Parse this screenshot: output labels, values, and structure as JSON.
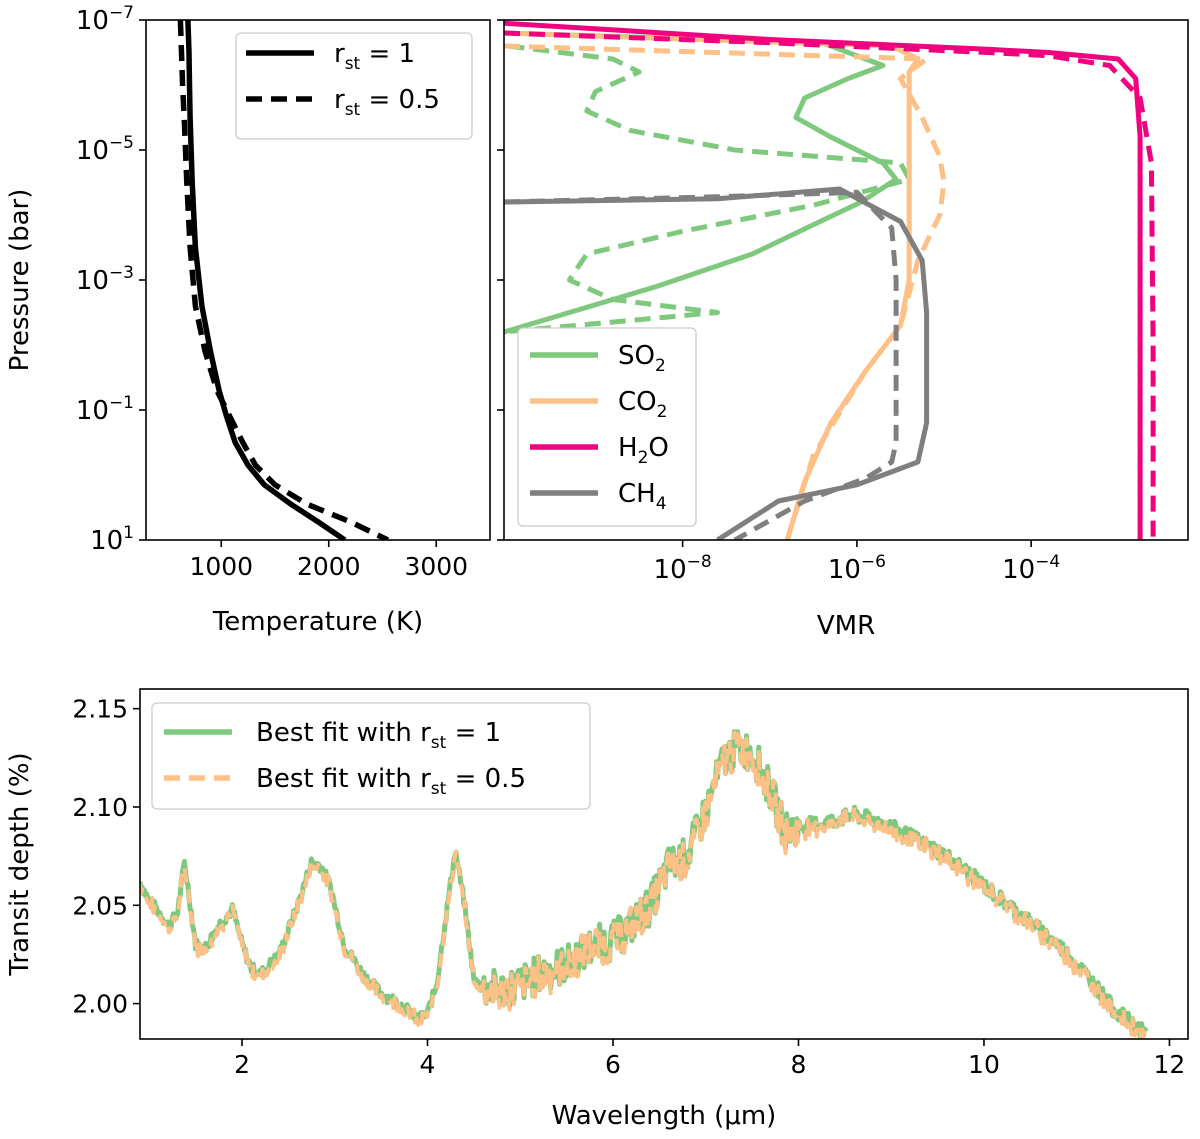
{
  "colors": {
    "so2": "#7fc97f",
    "co2": "#fdc086",
    "h2o": "#f0027f",
    "ch4": "#7f7f7f",
    "temp": "#000000"
  },
  "chart_data": [
    {
      "id": "temperature",
      "type": "line",
      "xlabel": "Temperature (K)",
      "ylabel": "Pressure (bar)",
      "xlim": [
        300,
        3500
      ],
      "xticks": [
        1000,
        2000,
        3000
      ],
      "ylim_log10": [
        -7,
        1
      ],
      "yscale": "log",
      "yaxis_inverted": true,
      "yticks": [
        {
          "base": "10",
          "exp": "−7",
          "v": -7
        },
        {
          "base": "10",
          "exp": "−5",
          "v": -5
        },
        {
          "base": "10",
          "exp": "−3",
          "v": -3
        },
        {
          "base": "10",
          "exp": "−1",
          "v": -1
        },
        {
          "base": "10",
          "exp": "1",
          "v": 1
        }
      ],
      "legend": {
        "placement": "top-right",
        "entries": [
          {
            "label_main": "r",
            "label_sub": "st",
            "label_rest": " = 1",
            "style": "solid"
          },
          {
            "label_main": "r",
            "label_sub": "st",
            "label_rest": " = 0.5",
            "style": "dashed"
          }
        ]
      },
      "series": [
        {
          "name": "r_st = 1",
          "style": "solid",
          "color_key": "temp",
          "x": [
            690,
            700,
            705,
            710,
            730,
            760,
            820,
            900,
            980,
            1050,
            1130,
            1250,
            1400,
            1650,
            1900,
            2150
          ],
          "y_log10": [
            -7,
            -6.5,
            -6,
            -5.5,
            -4.5,
            -3.5,
            -2.6,
            -1.9,
            -1.3,
            -0.9,
            -0.5,
            -0.15,
            0.15,
            0.45,
            0.72,
            1
          ]
        },
        {
          "name": "r_st = 0.5",
          "style": "dashed",
          "color_key": "temp",
          "x": [
            620,
            630,
            640,
            655,
            680,
            710,
            760,
            850,
            960,
            1080,
            1200,
            1320,
            1500,
            1800,
            2200,
            2550
          ],
          "y_log10": [
            -7,
            -6.5,
            -6,
            -5.5,
            -4.5,
            -3.5,
            -2.6,
            -1.9,
            -1.3,
            -0.9,
            -0.5,
            -0.15,
            0.15,
            0.45,
            0.72,
            1
          ]
        }
      ]
    },
    {
      "id": "vmr",
      "type": "line",
      "xlabel": "VMR",
      "xscale": "log",
      "xlim_log10": [
        -10.05,
        -2.2
      ],
      "xticks": [
        {
          "base": "10",
          "exp": "−8",
          "v": -8
        },
        {
          "base": "10",
          "exp": "−6",
          "v": -6
        },
        {
          "base": "10",
          "exp": "−4",
          "v": -4
        }
      ],
      "ylim_log10": [
        -7,
        1
      ],
      "yscale": "log",
      "yaxis_inverted": true,
      "legend": {
        "placement": "bottom-left",
        "entries": [
          {
            "label_main": "SO",
            "label_sub": "2",
            "label_rest": "",
            "color_key": "so2"
          },
          {
            "label_main": "CO",
            "label_sub": "2",
            "label_rest": "",
            "color_key": "co2"
          },
          {
            "label_main": "H",
            "label_sub": "2",
            "label_rest": "O",
            "color_key": "h2o"
          },
          {
            "label_main": "CH",
            "label_sub": "4",
            "label_rest": "",
            "color_key": "ch4"
          }
        ]
      },
      "series": [
        {
          "name": "SO2",
          "style": "solid",
          "color_key": "so2",
          "x_log10": [
            -10.05,
            -6.4,
            -5.7,
            -6.1,
            -6.6,
            -6.7,
            -6.3,
            -5.7,
            -5.55,
            -5.95,
            -6.5,
            -7.2,
            -8.3,
            -9.3,
            -10.05
          ],
          "y_log10": [
            -6.8,
            -6.65,
            -6.3,
            -6.1,
            -5.8,
            -5.5,
            -5.2,
            -4.8,
            -4.55,
            -4.2,
            -3.85,
            -3.4,
            -2.9,
            -2.5,
            -2.2
          ]
        },
        {
          "name": "SO2",
          "style": "dashed",
          "color_key": "so2",
          "x_log10": [
            -10.0,
            -8.8,
            -8.5,
            -9.0,
            -9.1,
            -8.6,
            -7.4,
            -5.5,
            -5.4,
            -6.5,
            -8.0,
            -9.1,
            -9.3,
            -8.8,
            -7.6,
            -10.05
          ],
          "y_log10": [
            -6.6,
            -6.4,
            -6.2,
            -5.9,
            -5.6,
            -5.3,
            -5.0,
            -4.8,
            -4.55,
            -4.15,
            -3.75,
            -3.4,
            -3.0,
            -2.7,
            -2.5,
            -2.2
          ]
        },
        {
          "name": "CO2",
          "style": "solid",
          "color_key": "co2",
          "x_log10": [
            -10.05,
            -5.6,
            -5.3,
            -5.4,
            -5.4,
            -5.4,
            -5.4,
            -5.5,
            -5.9,
            -6.3,
            -6.6,
            -6.8
          ],
          "y_log10": [
            -6.8,
            -6.6,
            -6.4,
            -6.2,
            -5.5,
            -4.0,
            -3.0,
            -2.3,
            -1.6,
            -0.8,
            0.1,
            1.0
          ]
        },
        {
          "name": "CO2",
          "style": "dashed",
          "color_key": "co2",
          "x_log10": [
            -10.05,
            -5.2,
            -5.5,
            -5.25,
            -5.05,
            -5.0,
            -5.05,
            -5.3,
            -5.5,
            -5.9,
            -6.5,
            -6.8
          ],
          "y_log10": [
            -6.6,
            -6.4,
            -6.1,
            -5.5,
            -4.9,
            -4.5,
            -4.0,
            -3.3,
            -2.3,
            -1.6,
            -0.3,
            1.0
          ]
        },
        {
          "name": "H2O",
          "style": "solid",
          "color_key": "h2o",
          "x_log10": [
            -10.05,
            -7.0,
            -4.5,
            -3.8,
            -3.0,
            -2.8,
            -2.75,
            -2.75,
            -2.75
          ],
          "y_log10": [
            -6.95,
            -6.7,
            -6.55,
            -6.5,
            -6.4,
            -6.1,
            -5.2,
            -2.0,
            1.0
          ]
        },
        {
          "name": "H2O",
          "style": "dashed",
          "color_key": "h2o",
          "x_log10": [
            -10.05,
            -7.0,
            -4.5,
            -3.8,
            -3.1,
            -2.75,
            -2.62,
            -2.6,
            -2.6
          ],
          "y_log10": [
            -6.8,
            -6.65,
            -6.5,
            -6.45,
            -6.3,
            -5.8,
            -4.8,
            -2.0,
            1.0
          ]
        },
        {
          "name": "CH4",
          "style": "solid",
          "color_key": "ch4",
          "x_log10": [
            -10.05,
            -7.6,
            -6.2,
            -5.5,
            -5.25,
            -5.2,
            -5.2,
            -5.2,
            -5.3,
            -6.0,
            -6.9,
            -7.6
          ],
          "y_log10": [
            -4.2,
            -4.25,
            -4.4,
            -3.9,
            -3.3,
            -2.5,
            -1.5,
            -0.8,
            -0.2,
            0.15,
            0.4,
            1.0
          ]
        },
        {
          "name": "CH4",
          "style": "dashed",
          "color_key": "ch4",
          "x_log10": [
            -10.05,
            -7.6,
            -6.0,
            -5.6,
            -5.55,
            -5.55,
            -5.55,
            -5.6,
            -5.9,
            -6.6,
            -7.4
          ],
          "y_log10": [
            -4.2,
            -4.28,
            -4.35,
            -3.8,
            -3.0,
            -2.0,
            -0.5,
            -0.2,
            0.05,
            0.4,
            1.0
          ]
        }
      ]
    },
    {
      "id": "spectrum",
      "type": "line",
      "xlabel": "Wavelength (μm)",
      "ylabel": "Transit depth (%)",
      "xlim": [
        0.9,
        12.2
      ],
      "ylim": [
        1.982,
        2.16
      ],
      "xticks": [
        2,
        4,
        6,
        8,
        10,
        12
      ],
      "yticks": [
        2.0,
        2.05,
        2.1,
        2.15
      ],
      "ytick_labels": [
        "2.00",
        "2.05",
        "2.10",
        "2.15"
      ],
      "legend": {
        "placement": "top-left",
        "entries": [
          {
            "label_main": "Best fit with r",
            "label_sub": "st",
            "label_rest": " = 1",
            "color_key": "so2",
            "style": "solid"
          },
          {
            "label_main": "Best fit with r",
            "label_sub": "st",
            "label_rest": " = 0.5",
            "color_key": "co2",
            "style": "dashed"
          }
        ]
      },
      "base_profile": {
        "x": [
          0.9,
          1.0,
          1.1,
          1.2,
          1.3,
          1.38,
          1.5,
          1.6,
          1.75,
          1.9,
          2.0,
          2.1,
          2.2,
          2.4,
          2.6,
          2.75,
          2.85,
          2.95,
          3.1,
          3.3,
          3.5,
          3.7,
          3.9,
          4.0,
          4.1,
          4.2,
          4.3,
          4.4,
          4.5,
          4.6,
          4.8,
          5.0,
          5.2,
          5.5,
          5.8,
          6.0,
          6.2,
          6.4,
          6.6,
          6.8,
          7.0,
          7.2,
          7.35,
          7.5,
          7.7,
          7.85,
          8.0,
          8.3,
          8.6,
          8.9,
          9.2,
          9.6,
          10.0,
          10.4,
          10.8,
          11.1,
          11.4,
          11.75
        ],
        "y": [
          2.062,
          2.052,
          2.047,
          2.04,
          2.045,
          2.072,
          2.03,
          2.028,
          2.04,
          2.048,
          2.03,
          2.018,
          2.015,
          2.025,
          2.05,
          2.072,
          2.07,
          2.06,
          2.03,
          2.015,
          2.005,
          2.0,
          1.992,
          1.995,
          2.01,
          2.045,
          2.078,
          2.05,
          2.012,
          2.008,
          2.007,
          2.01,
          2.015,
          2.02,
          2.03,
          2.032,
          2.04,
          2.05,
          2.07,
          2.075,
          2.098,
          2.125,
          2.13,
          2.128,
          2.108,
          2.088,
          2.09,
          2.092,
          2.096,
          2.092,
          2.085,
          2.075,
          2.06,
          2.045,
          2.03,
          2.015,
          1.997,
          1.984
        ]
      }
    }
  ]
}
